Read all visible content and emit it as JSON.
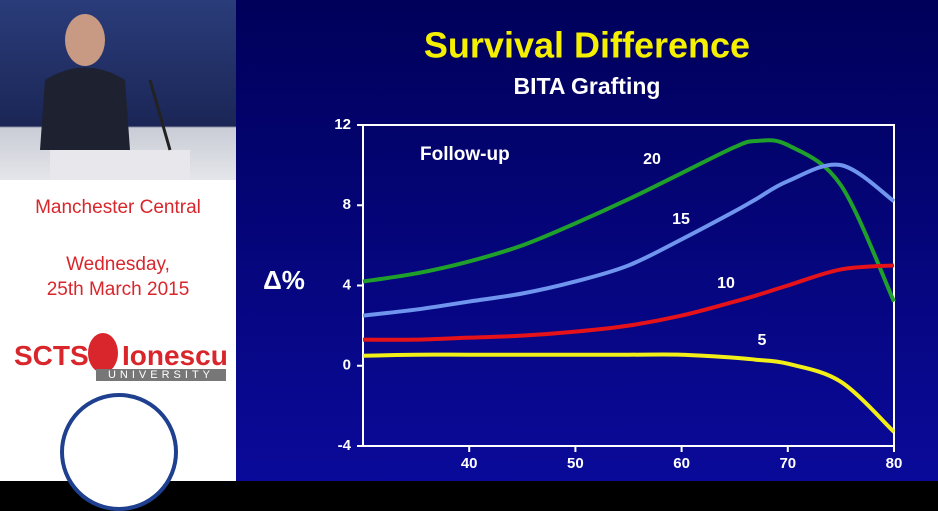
{
  "side_panel": {
    "venue": "Manchester Central",
    "date_line1": "Wednesday,",
    "date_line2": "25th March 2015",
    "brand_left": "SCTS",
    "brand_right": "Ionescu",
    "brand_sub": "UNIVERSITY"
  },
  "chart_data": {
    "type": "line",
    "title": "Survival Difference",
    "subtitle": "BITA Grafting",
    "ylabel": "Δ%",
    "annotation": "Follow-up",
    "x": [
      30,
      35,
      40,
      45,
      50,
      55,
      60,
      65,
      67,
      70,
      75,
      80
    ],
    "series": [
      {
        "name": "20",
        "color": "#1fa02a",
        "values": [
          4.2,
          4.6,
          5.2,
          6.0,
          7.1,
          8.3,
          9.6,
          10.9,
          11.2,
          11.0,
          9.0,
          3.2
        ]
      },
      {
        "name": "15",
        "color": "#6f95ee",
        "values": [
          2.5,
          2.8,
          3.2,
          3.6,
          4.2,
          5.0,
          6.3,
          7.7,
          8.3,
          9.2,
          10.0,
          8.2
        ]
      },
      {
        "name": "10",
        "color": "#e5121a",
        "values": [
          1.3,
          1.3,
          1.4,
          1.5,
          1.7,
          2.0,
          2.5,
          3.2,
          3.5,
          4.0,
          4.8,
          5.0
        ]
      },
      {
        "name": "5",
        "color": "#f2ee18",
        "values": [
          0.5,
          0.55,
          0.55,
          0.55,
          0.55,
          0.55,
          0.55,
          0.4,
          0.3,
          0.1,
          -0.8,
          -3.3
        ]
      }
    ],
    "xlim": [
      30,
      80
    ],
    "xticks": [
      40,
      50,
      60,
      70,
      80
    ],
    "ylim": [
      -4,
      12
    ],
    "yticks": [
      -4,
      0,
      4,
      8,
      12
    ]
  }
}
